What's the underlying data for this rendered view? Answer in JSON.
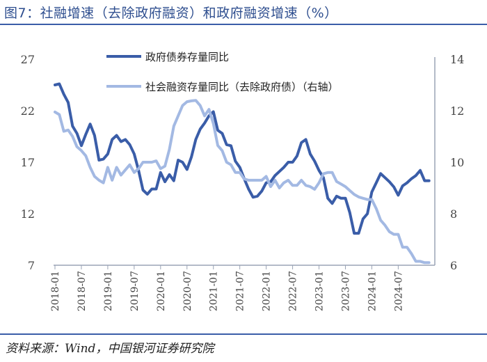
{
  "header": {
    "title": "图7：社融增速（去除政府融资）和政府融资增速（%）"
  },
  "footer": {
    "source": "资料来源：Wind，中国银河证券研究院"
  },
  "colors": {
    "gov": "#3a5da8",
    "social": "#a3b9e3",
    "axis": "#9aa3b5",
    "rule": "#3a5da8"
  },
  "chart_data": {
    "type": "line",
    "title": "图7：社融增速（去除政府融资）和政府融资增速（%）",
    "x_tick_labels": [
      "2018-01",
      "2018-07",
      "2019-01",
      "2019-07",
      "2020-01",
      "2020-07",
      "2021-01",
      "2021-07",
      "2022-01",
      "2022-07",
      "2023-01",
      "2023-07",
      "2024-01",
      "2024-07"
    ],
    "y_left": {
      "ticks": [
        7,
        12,
        17,
        22,
        27
      ],
      "ylim": [
        7,
        27
      ]
    },
    "y_right": {
      "ticks": [
        6,
        8,
        10,
        12,
        14
      ],
      "ylim": [
        6,
        14
      ]
    },
    "legend": [
      "政府债券存量同比",
      "社会融资存量同比（去除政府债）（右轴）"
    ],
    "series": [
      {
        "name": "政府债券存量同比",
        "axis": "left",
        "start": "2018-01",
        "values": [
          24.5,
          24.6,
          23.6,
          22.8,
          20.5,
          19.8,
          18.6,
          19.7,
          20.7,
          19.6,
          17.2,
          17.3,
          17.8,
          19.2,
          19.6,
          19.0,
          19.2,
          18.7,
          17.8,
          16.2,
          14.3,
          13.9,
          14.4,
          14.4,
          16.0,
          15.1,
          15.8,
          15.2,
          17.2,
          17.0,
          16.3,
          17.5,
          19.2,
          20.2,
          20.8,
          21.5,
          21.9,
          20.1,
          19.8,
          18.7,
          18.6,
          17.1,
          16.5,
          15.4,
          14.4,
          13.6,
          13.7,
          14.2,
          15.0,
          15.1,
          15.7,
          16.1,
          16.5,
          17.0,
          17.0,
          17.6,
          18.9,
          19.2,
          17.8,
          17.1,
          16.2,
          15.5,
          13.5,
          13.0,
          13.7,
          13.5,
          13.5,
          12.1,
          10.1,
          10.1,
          11.5,
          12.0,
          14.1,
          15.0,
          15.9,
          15.5,
          15.1,
          14.6,
          13.8,
          14.7,
          15.0,
          15.4,
          15.7,
          16.2,
          15.2,
          15.2
        ]
      },
      {
        "name": "社会融资存量同比（去除政府债）（右轴）",
        "axis": "right",
        "start": "2018-01",
        "values": [
          11.95,
          11.85,
          11.2,
          11.25,
          11.0,
          10.6,
          10.45,
          10.25,
          9.8,
          9.45,
          9.3,
          9.2,
          9.8,
          9.3,
          9.8,
          9.5,
          9.7,
          9.9,
          9.6,
          9.75,
          10.0,
          10.0,
          10.0,
          10.05,
          9.75,
          9.85,
          10.5,
          11.4,
          11.8,
          12.2,
          12.35,
          12.38,
          12.4,
          12.2,
          11.8,
          12.05,
          11.5,
          10.65,
          10.45,
          10.0,
          9.9,
          9.6,
          9.6,
          9.35,
          9.3,
          9.3,
          9.3,
          9.3,
          9.45,
          9.05,
          9.3,
          9.0,
          9.2,
          9.3,
          9.1,
          9.1,
          9.3,
          9.1,
          9.05,
          8.95,
          9.2,
          9.55,
          9.6,
          9.6,
          9.25,
          9.15,
          9.05,
          8.9,
          8.75,
          8.65,
          8.6,
          8.55,
          8.55,
          8.2,
          7.75,
          7.55,
          7.3,
          7.2,
          7.2,
          6.7,
          6.7,
          6.45,
          6.15,
          6.15,
          6.1,
          6.1
        ]
      }
    ]
  }
}
